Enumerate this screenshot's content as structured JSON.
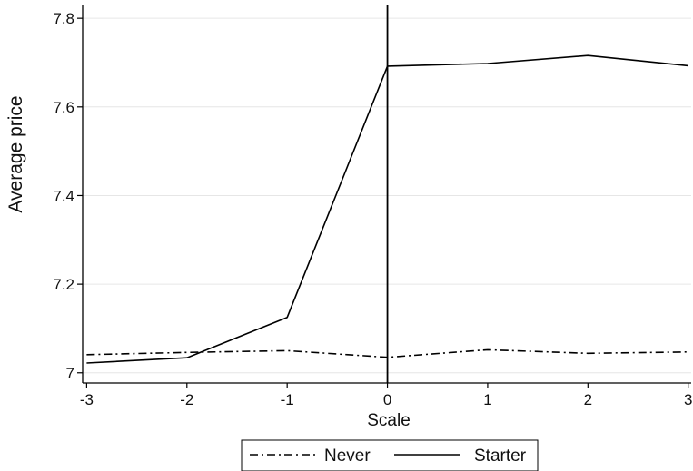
{
  "chart_data": {
    "type": "line",
    "title": "",
    "xlabel": "Scale",
    "ylabel": "Average price",
    "x": [
      -3,
      -2,
      -1,
      0,
      1,
      2,
      3
    ],
    "xticks": [
      "-3",
      "-2",
      "-1",
      "0",
      "1",
      "2",
      "3"
    ],
    "yticks": [
      "7",
      "7.2",
      "7.4",
      "7.6",
      "7.8"
    ],
    "ytick_values": [
      7,
      7.2,
      7.4,
      7.6,
      7.8
    ],
    "xlim": [
      -3.04,
      3.03
    ],
    "ylim": [
      6.977,
      7.829
    ],
    "grid": "horizontal",
    "reference_line_x": 0,
    "legend_position": "bottom",
    "series": [
      {
        "name": "Never",
        "style": "dash-dot",
        "color": "#000000",
        "values": [
          7.041,
          7.046,
          7.05,
          7.035,
          7.052,
          7.044,
          7.047
        ]
      },
      {
        "name": "Starter",
        "style": "solid",
        "color": "#000000",
        "values": [
          7.022,
          7.034,
          7.125,
          7.692,
          7.698,
          7.716,
          7.693
        ]
      }
    ]
  }
}
